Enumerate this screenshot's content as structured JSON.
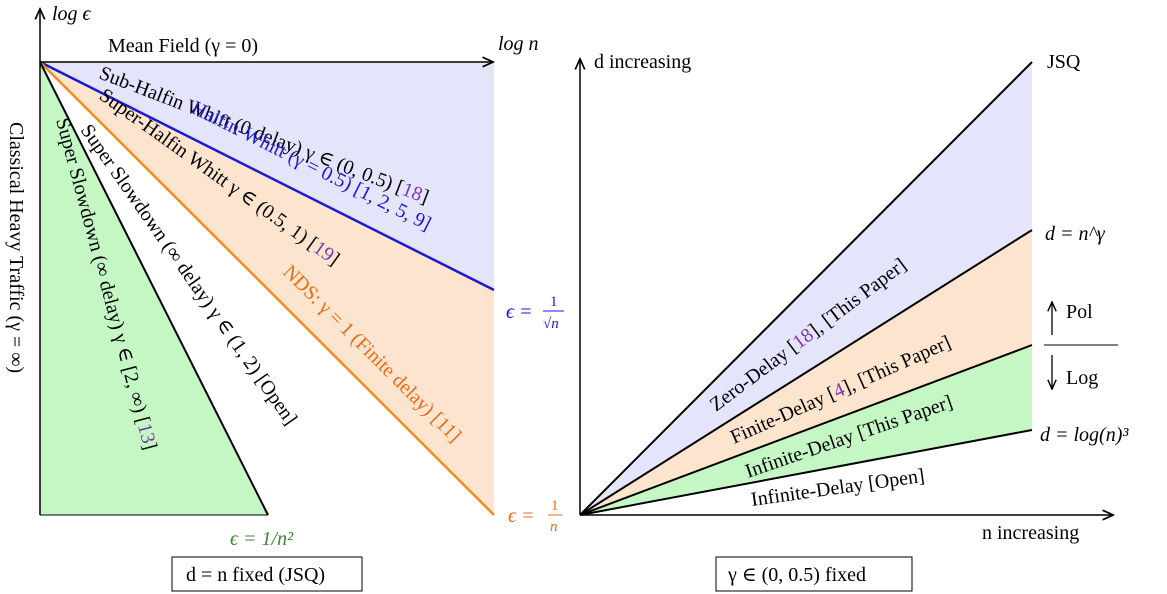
{
  "left": {
    "axis_y_label": "log ϵ",
    "axis_x_label": "log n",
    "mean_field": "Mean Field (γ = 0)",
    "sub_halfin": "Sub-Halfin Whitt (0 delay) γ ∈ (0, 0.5) [",
    "sub_halfin_ref": "18",
    "sub_halfin_end": "]",
    "halfin": "Halfin-Whitt (γ = 0.5) [1, 2, 5, 9]",
    "super_halfin": "Super-Halfin Whitt γ ∈ (0.5, 1) [",
    "super_halfin_ref": "19",
    "super_halfin_end": "]",
    "nds": "NDS: γ = 1 (Finite delay) [11]",
    "super_slowdown_inf": "Super Slowdown (∞ delay) γ ∈ (1, 2) [Open]",
    "super_slowdown_2": "Super Slowdown (∞ delay) γ ∈ [2, ∞) [",
    "super_slowdown_2_ref": "13",
    "super_slowdown_2_end": "]",
    "classical": "Classical Heavy Traffic (γ = ∞)",
    "eps_sqrt_pre": "ϵ =",
    "eps_sqrt_num": "1",
    "eps_sqrt_den": "√n",
    "eps_n_pre": "ϵ =",
    "eps_n_num": "1",
    "eps_n_den": "n",
    "eps_n2": "ϵ = 1/n²",
    "caption": "d = n fixed (JSQ)"
  },
  "right": {
    "axis_y_label": "d increasing",
    "axis_x_label": "n increasing",
    "jsq": "JSQ",
    "d_ngamma": "d = n^γ",
    "pol": "Pol",
    "log": "Log",
    "d_log": "d = log(n)³",
    "zero_delay_a": "Zero-Delay [",
    "zero_delay_ref": "18",
    "zero_delay_b": "], [This Paper]",
    "finite_delay_a": "Finite-Delay [",
    "finite_delay_ref": "4",
    "finite_delay_b": "], [This Paper]",
    "infinite_delay_this": "Infinite-Delay [This Paper]",
    "infinite_delay_open": "Infinite-Delay [Open]",
    "caption": "γ ∈ (0, 0.5) fixed"
  },
  "colors": {
    "lavender": "#e4e4fb",
    "peach": "#fde4cf",
    "green_fill": "#c4f7c4",
    "blue": "#1a1ad6",
    "orange": "#f58a1f",
    "purple": "#7a3aa6",
    "green_text": "#3a8a2a"
  }
}
